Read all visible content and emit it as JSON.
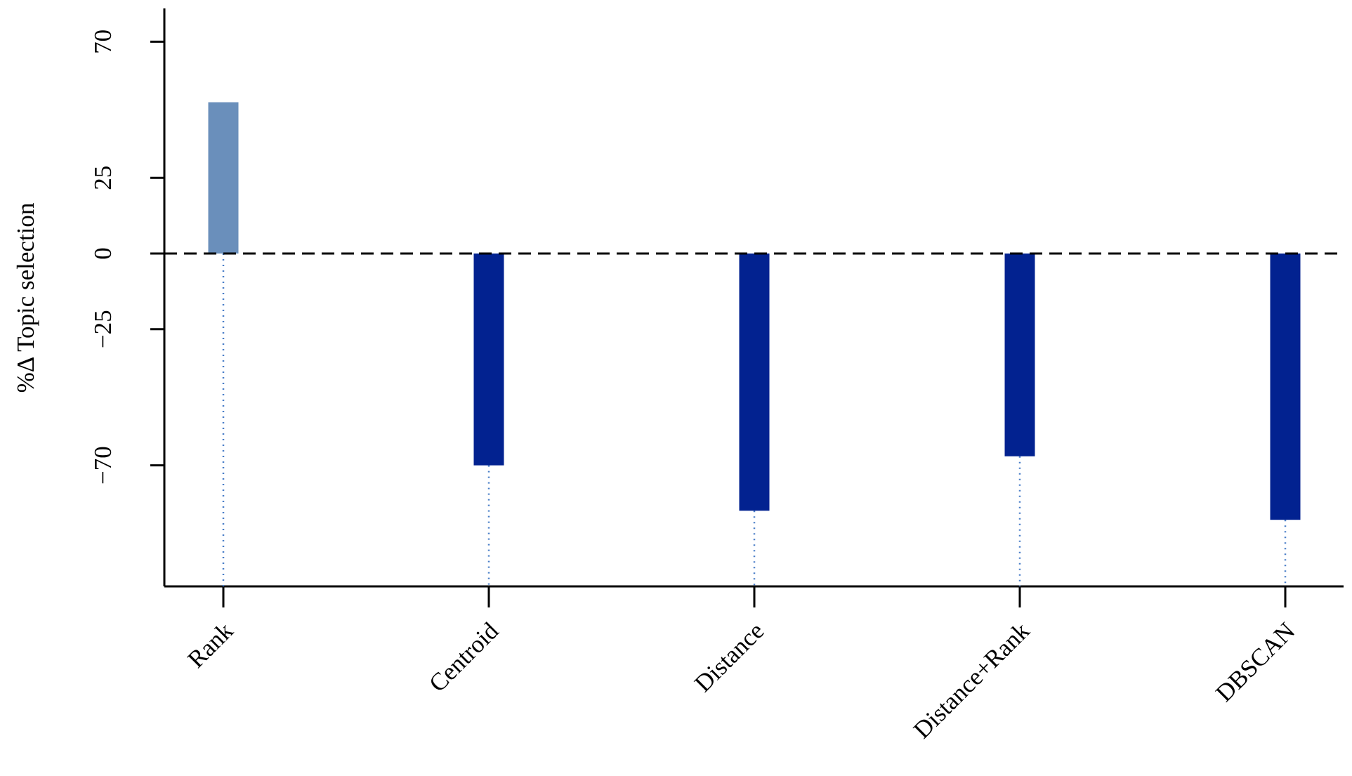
{
  "chart_data": {
    "type": "bar",
    "y_label": "%Δ  Topic selection",
    "categories": [
      "Rank",
      "Centroid",
      "Distance",
      "Distance+Rank",
      "DBSCAN"
    ],
    "values": [
      50,
      -70,
      -85,
      -67,
      -88
    ],
    "colors": [
      "#6a8fbb",
      "#022290",
      "#022290",
      "#022290",
      "#022290"
    ],
    "ylim": [
      -110,
      81
    ],
    "yticks": [
      {
        "value": -70,
        "label": "−70"
      },
      {
        "value": -25,
        "label": "−25"
      },
      0,
      25,
      70
    ],
    "reference_line": 0
  }
}
